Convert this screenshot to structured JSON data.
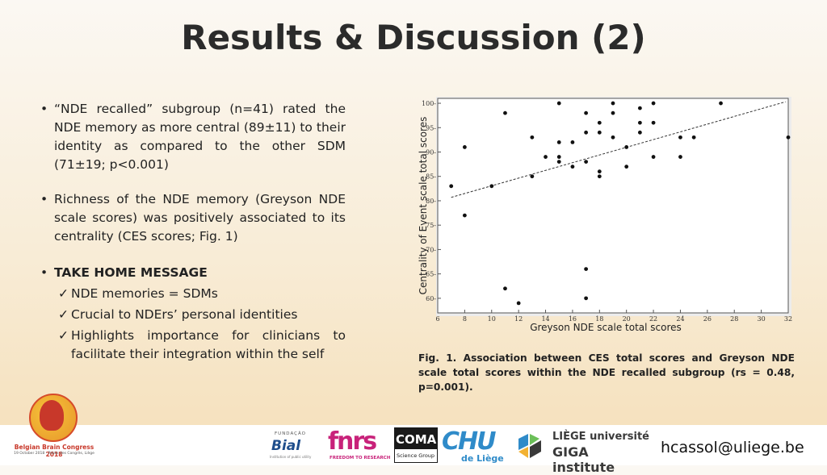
{
  "title": "Results & Discussion (2)",
  "bullets": {
    "b1": "“NDE recalled” subgroup (n=41) rated the NDE memory as more central (89±11) to their identity as compared to the other SDM (71±19; p<0.001)",
    "b2": "Richness of the NDE memory (Greyson NDE scale scores) was positively associated to its centrality (CES scores; Fig. 1)",
    "take_home": "TAKE HOME MESSAGE",
    "subs": [
      "NDE memories = SDMs",
      "Crucial to NDErs’ personal identities",
      "Highlights importance for clinicians to facilitate their integration within the self"
    ],
    "bullet_glyph": "•",
    "check_glyph": "✓"
  },
  "caption": "Fig. 1. Association between CES total scores and Greyson NDE scale total scores within the NDE recalled subgroup (rs = 0.48, p=0.001).",
  "chart_data": {
    "type": "scatter",
    "xlabel": "Greyson NDE scale total scores",
    "ylabel": "Centrality of Event scale total scores",
    "xlim": [
      6,
      32
    ],
    "ylim": [
      57,
      101
    ],
    "xticks": [
      6,
      8,
      10,
      12,
      14,
      16,
      18,
      20,
      22,
      24,
      26,
      28,
      30,
      32
    ],
    "yticks": [
      60,
      65,
      70,
      75,
      80,
      85,
      90,
      95,
      100
    ],
    "grid": false,
    "trendline": {
      "style": "dashed",
      "from": [
        7,
        80.7
      ],
      "to": [
        31.8,
        100.3
      ]
    },
    "points": [
      {
        "x": 7,
        "y": 83
      },
      {
        "x": 8,
        "y": 91
      },
      {
        "x": 8,
        "y": 77
      },
      {
        "x": 10,
        "y": 83
      },
      {
        "x": 11,
        "y": 98
      },
      {
        "x": 11,
        "y": 62
      },
      {
        "x": 12,
        "y": 59
      },
      {
        "x": 13,
        "y": 93
      },
      {
        "x": 13,
        "y": 85
      },
      {
        "x": 14,
        "y": 89
      },
      {
        "x": 15,
        "y": 100
      },
      {
        "x": 15,
        "y": 92
      },
      {
        "x": 15,
        "y": 89
      },
      {
        "x": 15,
        "y": 88
      },
      {
        "x": 16,
        "y": 92
      },
      {
        "x": 16,
        "y": 87
      },
      {
        "x": 17,
        "y": 98
      },
      {
        "x": 17,
        "y": 94
      },
      {
        "x": 17,
        "y": 88
      },
      {
        "x": 17,
        "y": 66
      },
      {
        "x": 17,
        "y": 60
      },
      {
        "x": 18,
        "y": 96
      },
      {
        "x": 18,
        "y": 94
      },
      {
        "x": 18,
        "y": 86
      },
      {
        "x": 18,
        "y": 85
      },
      {
        "x": 19,
        "y": 100
      },
      {
        "x": 19,
        "y": 98
      },
      {
        "x": 19,
        "y": 93
      },
      {
        "x": 20,
        "y": 91
      },
      {
        "x": 20,
        "y": 87
      },
      {
        "x": 21,
        "y": 99
      },
      {
        "x": 21,
        "y": 96
      },
      {
        "x": 21,
        "y": 94
      },
      {
        "x": 22,
        "y": 100
      },
      {
        "x": 22,
        "y": 96
      },
      {
        "x": 22,
        "y": 89
      },
      {
        "x": 24,
        "y": 93
      },
      {
        "x": 24,
        "y": 89
      },
      {
        "x": 25,
        "y": 93
      },
      {
        "x": 27,
        "y": 100
      },
      {
        "x": 32,
        "y": 93
      }
    ]
  },
  "footer": {
    "congress_line1": "Belgian Brain Congress 2018",
    "congress_line2": "19 October 2018 - Palais des Congrès, Liège",
    "bial_top": "FUNDAÇÃO",
    "bial_name": "Bial",
    "bial_sub": "Institution of public utility",
    "fnrs_name": "fnrs",
    "fnrs_sub": "FREEDOM TO RESEARCH",
    "coma_name": "COMA",
    "coma_sub": "Science Group",
    "chu_name": "CHU",
    "chu_sub": "de Liège",
    "giga_line1": "LIÈGE université",
    "giga_line2": "GIGA institute",
    "email": "hcassol@uliege.be"
  }
}
